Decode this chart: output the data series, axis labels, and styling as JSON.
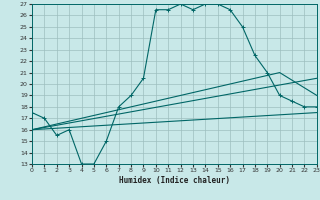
{
  "xlabel": "Humidex (Indice chaleur)",
  "bg_color": "#c8e8e8",
  "grid_color": "#9dbfbf",
  "line_color": "#006666",
  "xlim": [
    0,
    23
  ],
  "ylim": [
    13,
    27
  ],
  "xticks": [
    0,
    1,
    2,
    3,
    4,
    5,
    6,
    7,
    8,
    9,
    10,
    11,
    12,
    13,
    14,
    15,
    16,
    17,
    18,
    19,
    20,
    21,
    22,
    23
  ],
  "yticks": [
    13,
    14,
    15,
    16,
    17,
    18,
    19,
    20,
    21,
    22,
    23,
    24,
    25,
    26,
    27
  ],
  "curve1_x": [
    0,
    1,
    2,
    3,
    4,
    5,
    6,
    7,
    8,
    9,
    10,
    11,
    12,
    13,
    14,
    15,
    16,
    17,
    18,
    19,
    20,
    21,
    22,
    23
  ],
  "curve1_y": [
    17.5,
    17,
    15.5,
    16,
    13,
    13,
    15,
    18,
    19,
    20.5,
    26.5,
    26.5,
    27,
    26.5,
    27,
    27,
    26.5,
    25,
    22.5,
    21,
    19,
    18.5,
    18,
    18
  ],
  "line1_x": [
    0,
    23
  ],
  "line1_y": [
    16.0,
    17.5
  ],
  "line2_x": [
    0,
    23
  ],
  "line2_y": [
    16.0,
    20.5
  ],
  "line3_x": [
    0,
    20,
    23
  ],
  "line3_y": [
    16.0,
    21.0,
    19.0
  ]
}
